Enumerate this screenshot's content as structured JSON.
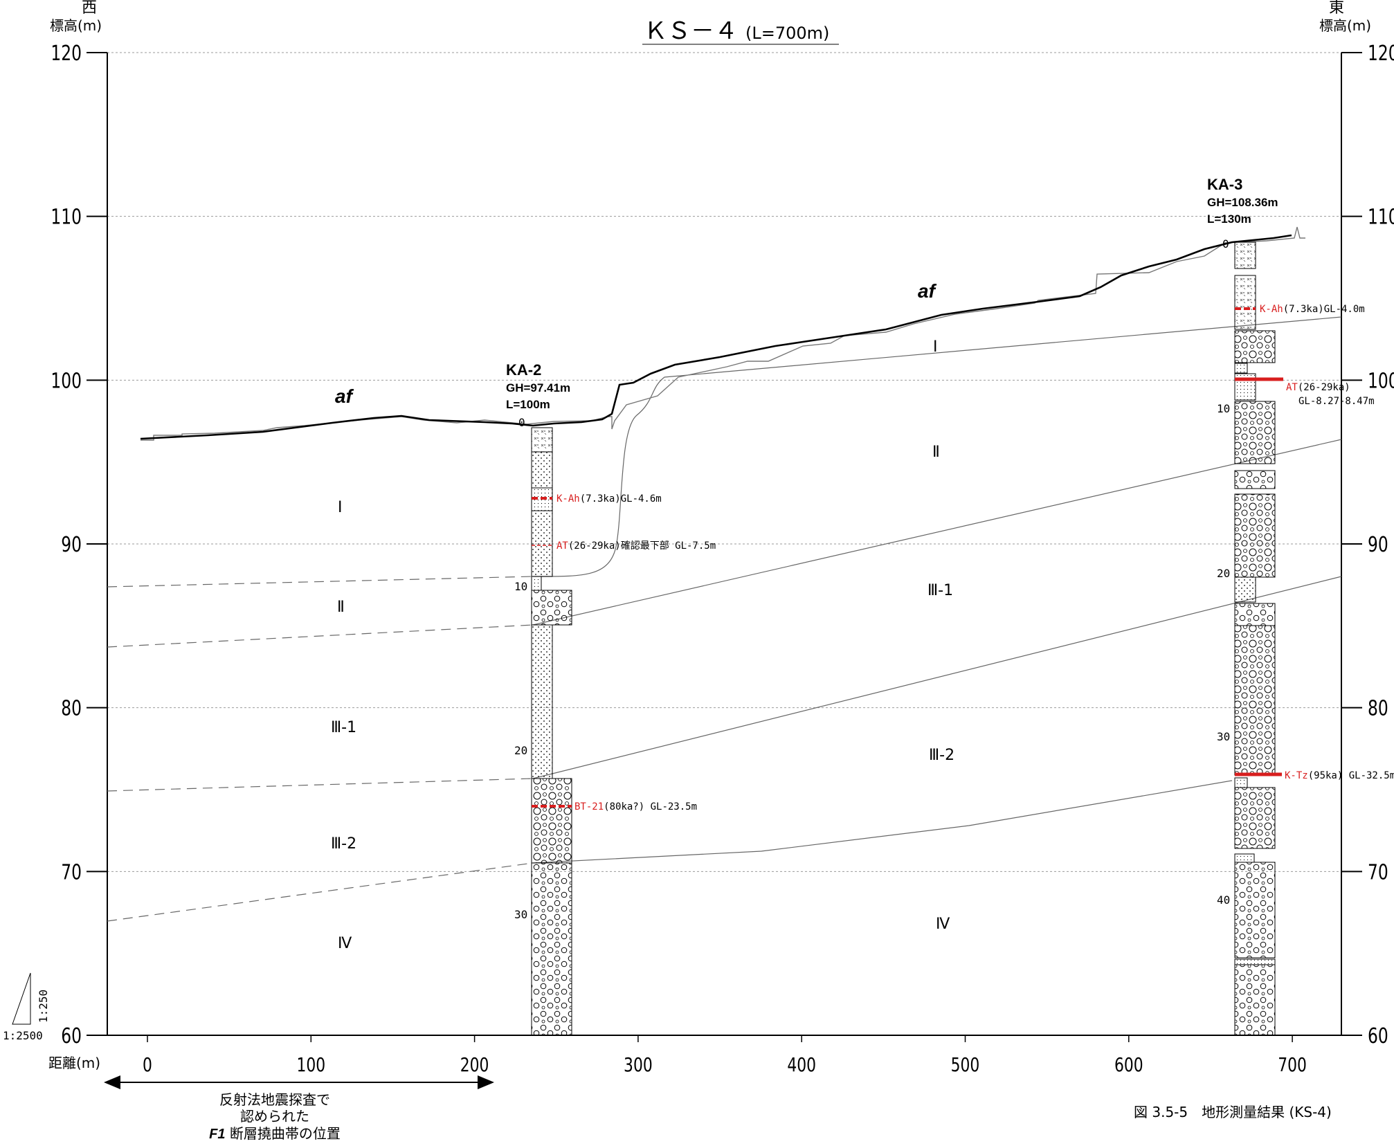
{
  "title": {
    "main": "ＫＳ－４",
    "sub": "(L=700m)"
  },
  "axes": {
    "left_dir": "西",
    "right_dir": "東",
    "left_label": "標高(m)",
    "right_label": "標高(m)",
    "x_label": "距離(m)",
    "y_ticks": [
      "120",
      "110",
      "100",
      "90",
      "80",
      "70",
      "60"
    ],
    "x_ticks": [
      "0",
      "100",
      "200",
      "300",
      "400",
      "500",
      "600",
      "700"
    ]
  },
  "scale": {
    "vertical": "1:250",
    "horizontal": "1:2500"
  },
  "af_labels": [
    "af",
    "af"
  ],
  "units_west": [
    "Ⅰ",
    "Ⅱ",
    "Ⅲ-1",
    "Ⅲ-2",
    "Ⅳ"
  ],
  "units_east": [
    "Ⅰ",
    "Ⅱ",
    "Ⅲ-1",
    "Ⅲ-2",
    "Ⅳ"
  ],
  "boreholes": [
    {
      "name": "KA-2",
      "gh": "GH=97.41m",
      "length": "L=100m",
      "depth_ticks": [
        "0",
        "10",
        "20",
        "30"
      ],
      "markers": [
        {
          "name": "K-Ah",
          "desc": "(7.3ka)GL-4.6m"
        },
        {
          "name": "AT",
          "desc": "(26-29ka)確認最下部 GL-7.5m"
        },
        {
          "name": "BT-21",
          "desc": "(80ka?) GL-23.5m"
        }
      ]
    },
    {
      "name": "KA-3",
      "gh": "GH=108.36m",
      "length": "L=130m",
      "depth_ticks": [
        "0",
        "10",
        "20",
        "30",
        "40"
      ],
      "markers": [
        {
          "name": "K-Ah",
          "desc": "(7.3ka)GL-4.0m"
        },
        {
          "name": "AT",
          "desc": "(26-29ka)",
          "desc2": "GL-8.27-8.47m"
        },
        {
          "name": "K-Tz",
          "desc": "(95ka) GL-32.5m"
        }
      ]
    }
  ],
  "annotation": {
    "line1": "反射法地震探査で",
    "line2": "認められた",
    "line3_bold": "F1",
    "line3": " 断層撓曲帯の位置"
  },
  "caption": "図 3.5-5　地形測量結果 (KS-4)",
  "colors": {
    "marker": "#d81e1e",
    "grid": "#999999",
    "line": "#000000"
  }
}
